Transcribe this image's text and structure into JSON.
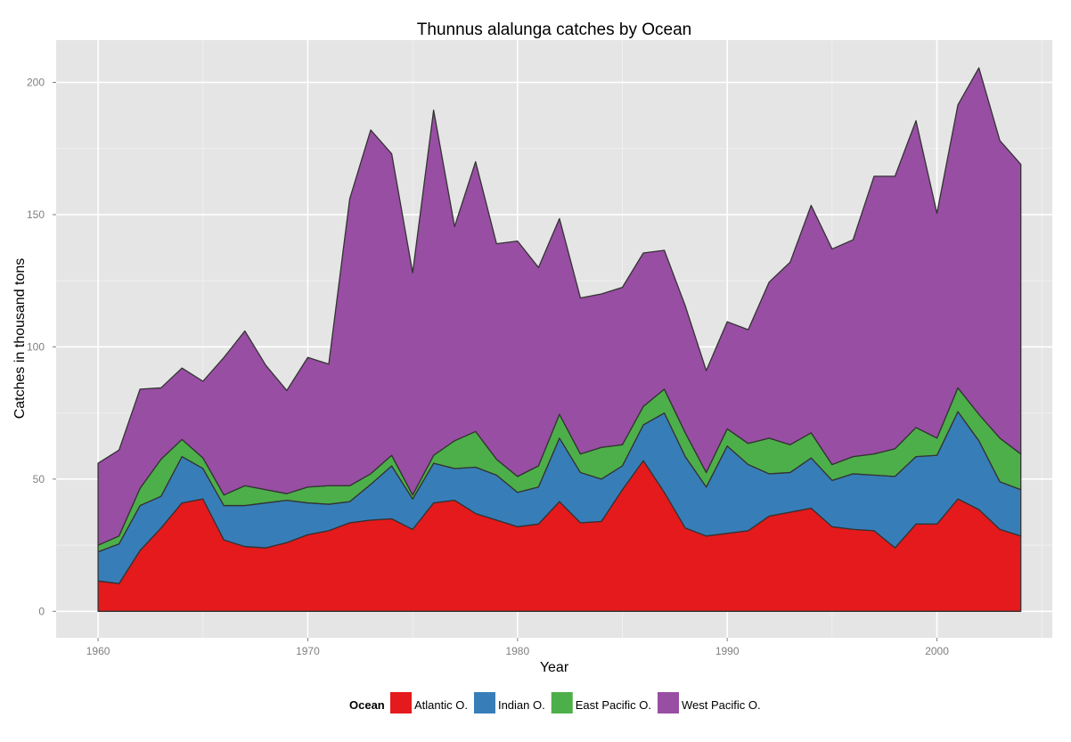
{
  "chart_data": {
    "type": "area",
    "stacked": true,
    "title": "Thunnus alalunga catches by Ocean",
    "xlabel": "Year",
    "ylabel": "Catches in thousand tons",
    "xlim": [
      1958,
      2005.5
    ],
    "ylim": [
      -10,
      216
    ],
    "x_ticks": [
      1960,
      1970,
      1980,
      1990,
      2000
    ],
    "y_ticks": [
      0,
      50,
      100,
      150,
      200
    ],
    "grid": true,
    "legend_position": "bottom",
    "legend_title": "Ocean",
    "x": [
      1960,
      1961,
      1962,
      1963,
      1964,
      1965,
      1966,
      1967,
      1968,
      1969,
      1970,
      1971,
      1972,
      1973,
      1974,
      1975,
      1976,
      1977,
      1978,
      1979,
      1980,
      1981,
      1982,
      1983,
      1984,
      1985,
      1986,
      1987,
      1988,
      1989,
      1990,
      1991,
      1992,
      1993,
      1994,
      1995,
      1996,
      1997,
      1998,
      1999,
      2000,
      2001,
      2002,
      2003,
      2004
    ],
    "series": [
      {
        "name": "Atlantic O.",
        "color": "#e41a1c",
        "values": [
          11.5,
          10.5,
          23,
          31.5,
          41,
          42.5,
          27,
          24.5,
          24,
          26,
          29,
          30.5,
          33.5,
          34.5,
          35,
          31,
          41,
          42,
          37,
          34.5,
          32,
          33,
          41.5,
          33.5,
          34,
          46,
          57,
          45,
          31.5,
          28.5,
          29.5,
          30.5,
          36,
          37.5,
          39,
          32,
          31,
          30.5,
          24,
          33,
          33,
          42.5,
          38.5,
          31,
          28.5
        ]
      },
      {
        "name": "Indian O.",
        "color": "#377eb8",
        "values": [
          11,
          15,
          17,
          12,
          17.5,
          11.5,
          13,
          15.5,
          17,
          16,
          12,
          10,
          8,
          13.5,
          20,
          11.5,
          15,
          12,
          17.5,
          17,
          13,
          14,
          24,
          19,
          16,
          9,
          13.5,
          30,
          27,
          18.5,
          33,
          25,
          16,
          15,
          19,
          17.5,
          21,
          21,
          27,
          25.5,
          26,
          33,
          26,
          18,
          17.5
        ]
      },
      {
        "name": "East Pacific O.",
        "color": "#4daf4a",
        "values": [
          2.5,
          3,
          6.5,
          14,
          6.5,
          4,
          4,
          7.5,
          5,
          2.5,
          6,
          7,
          6,
          4,
          4,
          1.5,
          3,
          10.5,
          13.5,
          6,
          6,
          8,
          9,
          7,
          12,
          8,
          7,
          9,
          9,
          5.5,
          6.5,
          8,
          13.5,
          10.5,
          9.5,
          6,
          6.5,
          8,
          10.5,
          11,
          6.5,
          9,
          10,
          16.5,
          13.5
        ]
      },
      {
        "name": "West Pacific O.",
        "color": "#984ea3",
        "values": [
          31,
          32.5,
          37.5,
          27,
          27,
          29,
          52,
          58.5,
          47,
          39,
          49,
          46,
          108.5,
          130,
          114,
          84,
          130.5,
          81,
          102,
          81.5,
          89,
          75,
          74,
          59,
          58,
          59.5,
          58,
          52.5,
          48,
          38.5,
          40.5,
          43,
          59,
          69,
          86,
          81.5,
          82,
          105,
          103,
          116,
          85,
          107,
          131,
          112.5,
          109.5
        ]
      }
    ]
  }
}
